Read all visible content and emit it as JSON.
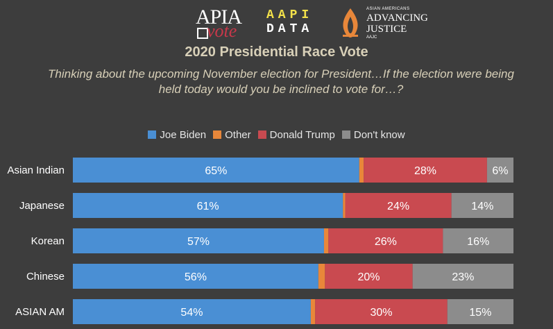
{
  "logos": {
    "apia": {
      "word": "APIA",
      "sub": "vote"
    },
    "aapi": {
      "line1": "AAPI",
      "line2": "DATA"
    },
    "aajc": {
      "line1": "ASIAN AMERICANS",
      "line2": "ADVANCING",
      "line3": "JUSTICE",
      "line4": "AAJC"
    }
  },
  "colors": {
    "background": "#3d3d3d",
    "biden": "#4a8fd4",
    "other": "#e8873a",
    "trump": "#c94a50",
    "dont_know": "#8c8c8c",
    "title": "#d8d0b8"
  },
  "chart_data": {
    "type": "bar",
    "orientation": "horizontal",
    "stacked": true,
    "title": "2020 Presidential Race Vote",
    "subtitle": "Thinking about the upcoming November election for President…If the election were being held today would you be inclined to vote for…?",
    "categories": [
      "Asian Indian",
      "Japanese",
      "Korean",
      "Chinese",
      "ASIAN AM"
    ],
    "series": [
      {
        "name": "Joe Biden",
        "values": [
          65,
          61,
          57,
          56,
          54
        ],
        "labels": [
          "65%",
          "61%",
          "57%",
          "56%",
          "54%"
        ]
      },
      {
        "name": "Other",
        "values": [
          1,
          0.5,
          1,
          1.5,
          1
        ],
        "labels": [
          "",
          "",
          "",
          "",
          ""
        ]
      },
      {
        "name": "Donald Trump",
        "values": [
          28,
          24,
          26,
          20,
          30
        ],
        "labels": [
          "28%",
          "24%",
          "26%",
          "20%",
          "30%"
        ]
      },
      {
        "name": "Don't know",
        "values": [
          6,
          14,
          16,
          23,
          15
        ],
        "labels": [
          "6%",
          "14%",
          "16%",
          "23%",
          "15%"
        ]
      }
    ],
    "legend_position": "top-center",
    "xlim": [
      0,
      100
    ],
    "grid": false
  }
}
